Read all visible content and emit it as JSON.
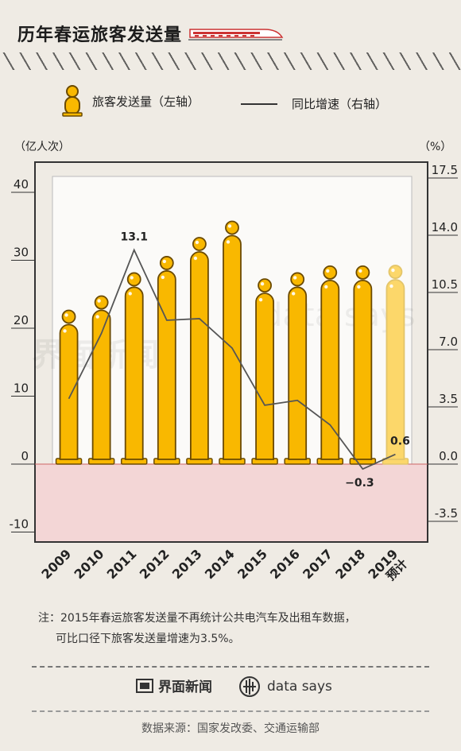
{
  "title": "历年春运旅客发送量",
  "legend": {
    "bar_label": "旅客发送量（左轴）",
    "line_label": "同比增速（右轴）"
  },
  "axis_units": {
    "left": "（亿人次）",
    "right": "（%）"
  },
  "note": {
    "line1": "注：2015年春运旅客发送量不再统计公共电汽车及出租车数据，",
    "line2": "可比口径下旅客发送量增速为3.5%。"
  },
  "brands": {
    "left": "界面新闻",
    "right": "data says"
  },
  "source": "数据来源：国家发改委、交通运输部",
  "watermark": {
    "left": "界面新闻",
    "right": "data says"
  },
  "colors": {
    "bar": "#f9b800",
    "bar_forecast": "#fcd76a",
    "line": "#555555",
    "negative_zone": "#f3d6d6",
    "background": "#efebe4"
  },
  "chart_data": {
    "type": "bar+line",
    "categories": [
      "2009",
      "2010",
      "2011",
      "2012",
      "2013",
      "2014",
      "2015",
      "2016",
      "2017",
      "2018",
      "2019"
    ],
    "category_sublabels": [
      "",
      "",
      "",
      "",
      "",
      "",
      "",
      "",
      "",
      "",
      "预计"
    ],
    "series": [
      {
        "name": "旅客发送量",
        "axis": "left",
        "type": "bar",
        "values": [
          22.4,
          24.5,
          27.9,
          30.3,
          33.1,
          35.5,
          27.0,
          27.9,
          28.9,
          28.9,
          29.0
        ],
        "forecast_index": 10
      },
      {
        "name": "同比增速",
        "axis": "right",
        "type": "line",
        "values": [
          4.0,
          8.0,
          13.1,
          8.8,
          8.9,
          7.1,
          3.6,
          3.9,
          2.4,
          -0.3,
          0.6
        ],
        "labels": [
          {
            "index": 2,
            "text": "13.1"
          },
          {
            "index": 9,
            "text": "−0.3"
          },
          {
            "index": 10,
            "text": "0.6"
          }
        ]
      }
    ],
    "left_axis": {
      "ticks": [
        -10,
        0,
        10,
        20,
        30,
        40
      ],
      "ylim": [
        -12,
        43
      ]
    },
    "right_axis": {
      "ticks": [
        "-3.5",
        "0.0",
        "3.5",
        "7.0",
        "10.5",
        "14.0",
        "17.5"
      ],
      "ylim": [
        -4.2,
        15.05
      ]
    },
    "grid": false,
    "negative_region": true
  }
}
